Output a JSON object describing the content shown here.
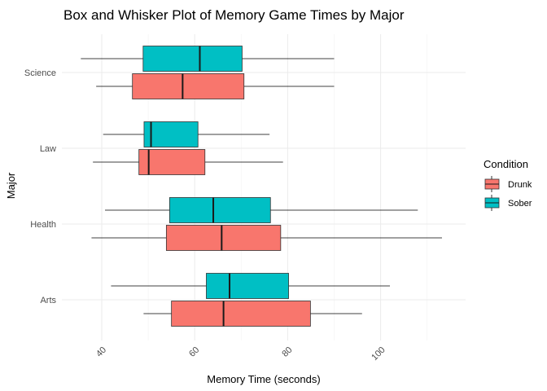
{
  "chart_data": {
    "type": "boxplot",
    "orientation": "horizontal",
    "title": "Box and Whisker Plot of Memory Game Times by Major",
    "xlabel": "Memory Time (seconds)",
    "ylabel": "Major",
    "xlim": [
      30,
      112
    ],
    "xticks": [
      40,
      60,
      80,
      100
    ],
    "categories": [
      "Arts",
      "Health",
      "Law",
      "Science"
    ],
    "legend": {
      "title": "Condition",
      "position": "right"
    },
    "grid": true,
    "series": [
      {
        "name": "Drunk",
        "color": "#F8766D",
        "boxes": [
          {
            "category": "Arts",
            "min": 49.0,
            "q1": 55.0,
            "median": 66.2,
            "q3": 84.9,
            "max": 96.0
          },
          {
            "category": "Health",
            "min": 37.8,
            "q1": 53.9,
            "median": 65.8,
            "q3": 78.5,
            "max": 113.2
          },
          {
            "category": "Law",
            "min": 38.1,
            "q1": 48.0,
            "median": 50.1,
            "q3": 62.2,
            "max": 79.0
          },
          {
            "category": "Science",
            "min": 38.8,
            "q1": 46.6,
            "median": 57.4,
            "q3": 70.6,
            "max": 90.0
          }
        ]
      },
      {
        "name": "Sober",
        "color": "#00BFC4",
        "boxes": [
          {
            "category": "Arts",
            "min": 42.0,
            "q1": 62.5,
            "median": 67.5,
            "q3": 80.2,
            "max": 102.0
          },
          {
            "category": "Health",
            "min": 40.7,
            "q1": 54.6,
            "median": 64.0,
            "q3": 76.3,
            "max": 108.0
          },
          {
            "category": "Law",
            "min": 40.3,
            "q1": 49.1,
            "median": 50.6,
            "q3": 60.7,
            "max": 76.1
          },
          {
            "category": "Science",
            "min": 35.5,
            "q1": 48.9,
            "median": 61.1,
            "q3": 70.2,
            "max": 90.0
          }
        ]
      }
    ]
  }
}
